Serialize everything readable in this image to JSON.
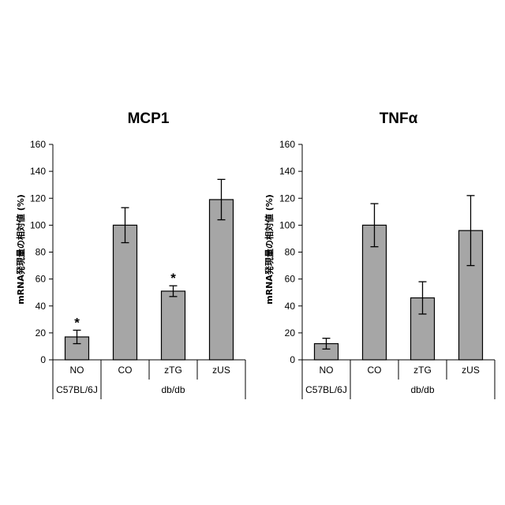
{
  "chart_data": [
    {
      "type": "bar",
      "title": "MCP1",
      "ylabel": "mRNA発現量の相対値 (%)",
      "xlabel": "",
      "ylim": [
        0,
        160
      ],
      "yticks": [
        0,
        20,
        40,
        60,
        80,
        100,
        120,
        140,
        160
      ],
      "categories": [
        "NO",
        "CO",
        "zTG",
        "zUS"
      ],
      "groups": [
        {
          "label": "C57BL/6J",
          "categories": [
            "NO"
          ]
        },
        {
          "label": "db/db",
          "categories": [
            "CO",
            "zTG",
            "zUS"
          ]
        }
      ],
      "values": [
        17,
        100,
        51,
        119
      ],
      "errors": [
        5,
        13,
        4,
        15
      ],
      "significance": [
        "*",
        "",
        "*",
        ""
      ],
      "bar_color": "#a6a6a6",
      "grid": false
    },
    {
      "type": "bar",
      "title": "TNFα",
      "ylabel": "mRNA発現量の相対値 (%)",
      "xlabel": "",
      "ylim": [
        0,
        160
      ],
      "yticks": [
        0,
        20,
        40,
        60,
        80,
        100,
        120,
        140,
        160
      ],
      "categories": [
        "NO",
        "CO",
        "zTG",
        "zUS"
      ],
      "groups": [
        {
          "label": "C57BL/6J",
          "categories": [
            "NO"
          ]
        },
        {
          "label": "db/db",
          "categories": [
            "CO",
            "zTG",
            "zUS"
          ]
        }
      ],
      "values": [
        12,
        100,
        46,
        96
      ],
      "errors": [
        4,
        16,
        12,
        26
      ],
      "significance": [
        "",
        "",
        "",
        ""
      ],
      "bar_color": "#a6a6a6",
      "grid": false
    }
  ]
}
